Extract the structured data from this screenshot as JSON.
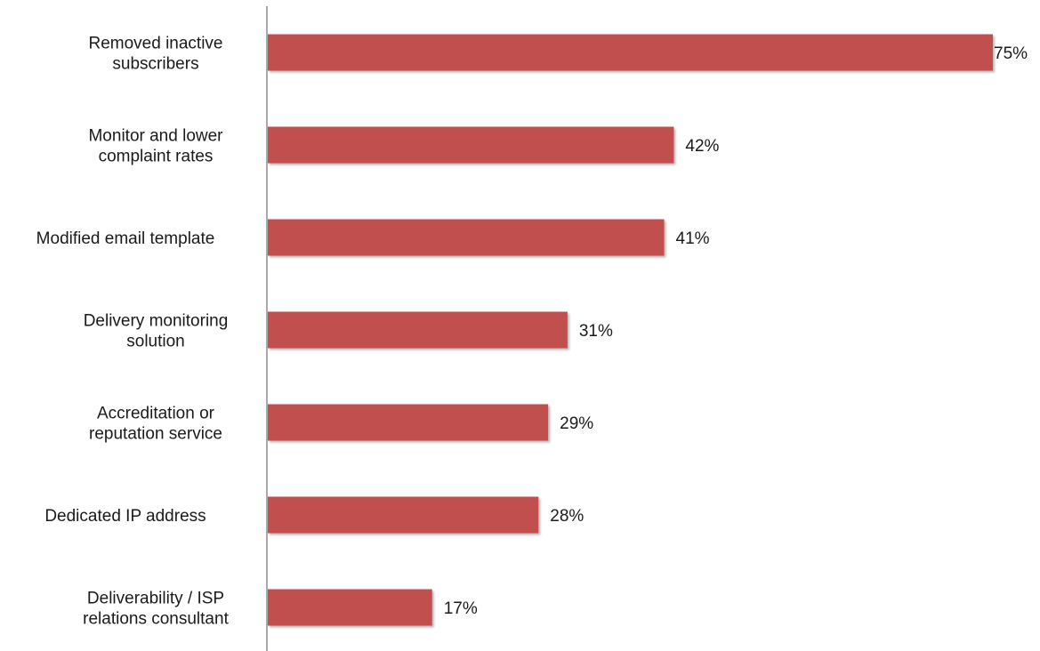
{
  "chart_data": {
    "type": "bar",
    "orientation": "horizontal",
    "categories": [
      [
        "Removed inactive",
        "subscribers"
      ],
      [
        "Monitor and lower",
        "complaint rates"
      ],
      [
        "Modified email template"
      ],
      [
        "Delivery monitoring",
        "solution"
      ],
      [
        "Accreditation or",
        "reputation service"
      ],
      [
        "Dedicated IP address"
      ],
      [
        "Deliverability / ISP",
        "relations consultant"
      ]
    ],
    "values": [
      75,
      42,
      41,
      31,
      29,
      28,
      17
    ],
    "value_labels": [
      "75%",
      "42%",
      "41%",
      "31%",
      "29%",
      "28%",
      "17%"
    ],
    "xlim": [
      0,
      75
    ],
    "grid": false,
    "legend": "none",
    "bar_color": "#c0504d",
    "title": "",
    "xlabel": "",
    "ylabel": ""
  }
}
